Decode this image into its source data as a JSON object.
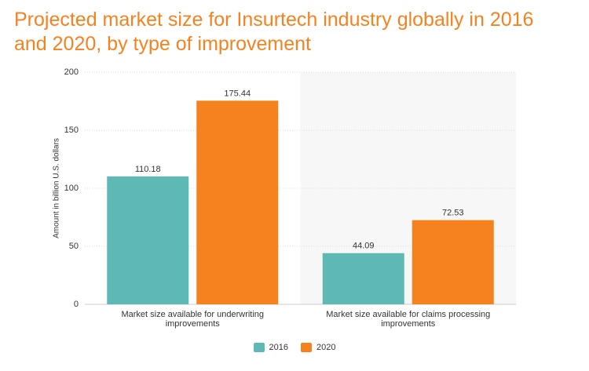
{
  "chart_data": {
    "type": "bar",
    "title": "Projected market size for Insurtech industry globally in 2016 and 2020, by type of improvement",
    "y_label": "Amount in billion U.S. dollars",
    "categories": [
      "Market size available for underwriting improvements",
      "Market size available for claims processing improvements"
    ],
    "series": [
      {
        "name": "2016",
        "color": "#5eb8b4",
        "values": [
          110.18,
          44.09
        ]
      },
      {
        "name": "2020",
        "color": "#f5821f",
        "values": [
          175.44,
          72.53
        ]
      }
    ],
    "ylim": [
      0,
      200
    ],
    "yticks": [
      0,
      50,
      100,
      150,
      200
    ],
    "grid": true
  }
}
